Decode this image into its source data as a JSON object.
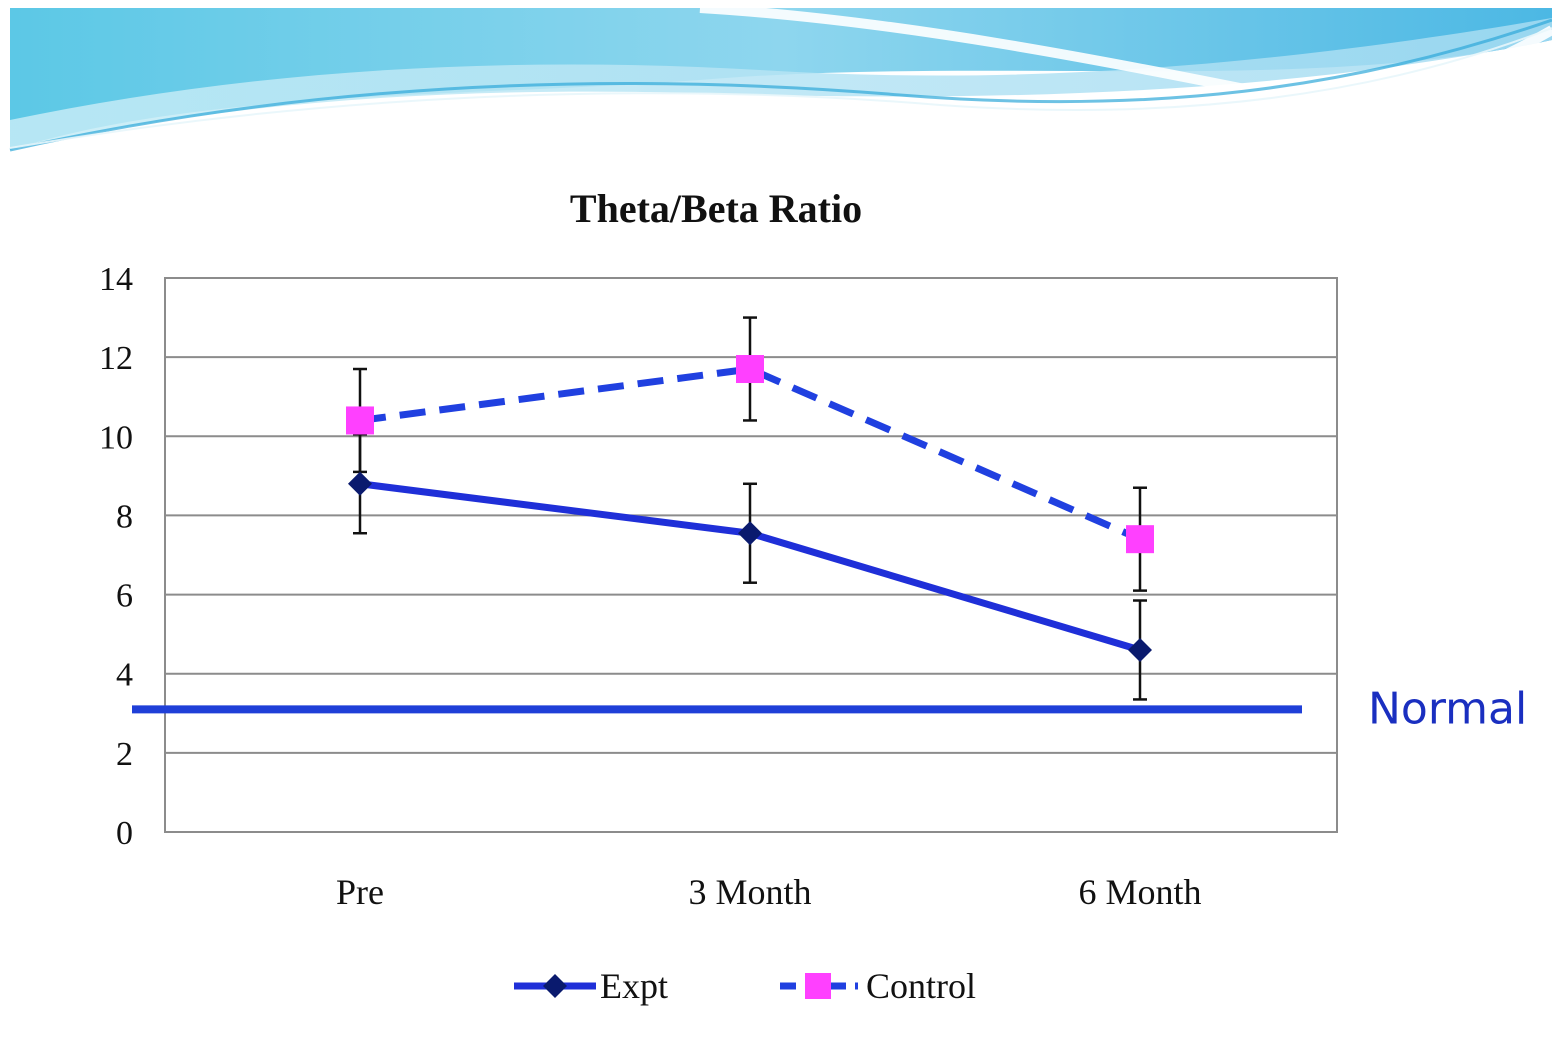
{
  "colors": {
    "expt": "#1f2fd8",
    "expt_marker": "#0a1a6e",
    "control_line": "#2040e0",
    "control_marker": "#ff40ff",
    "reference": "#1f3fd8",
    "reference_label": "#1a2fc0",
    "grid": "#8c8c8c",
    "error_bar": "#111111"
  },
  "chart_data": {
    "type": "line",
    "title": "Theta/Beta Ratio",
    "xlabel": "",
    "ylabel": "",
    "categories": [
      "Pre",
      "3 Month",
      "6 Month"
    ],
    "ylim": [
      0,
      14
    ],
    "yticks": [
      0,
      2,
      4,
      6,
      8,
      10,
      12,
      14
    ],
    "grid": true,
    "legend_position": "bottom",
    "series": [
      {
        "name": "Expt",
        "values": [
          8.8,
          7.55,
          4.6
        ],
        "error": [
          1.25,
          1.25,
          1.25
        ],
        "line_style": "solid",
        "marker": "diamond"
      },
      {
        "name": "Control",
        "values": [
          10.4,
          11.7,
          7.4
        ],
        "error": [
          1.3,
          1.3,
          1.3
        ],
        "line_style": "dashed",
        "marker": "square"
      }
    ],
    "reference_line": {
      "value": 3.1,
      "label": "Normal"
    }
  }
}
